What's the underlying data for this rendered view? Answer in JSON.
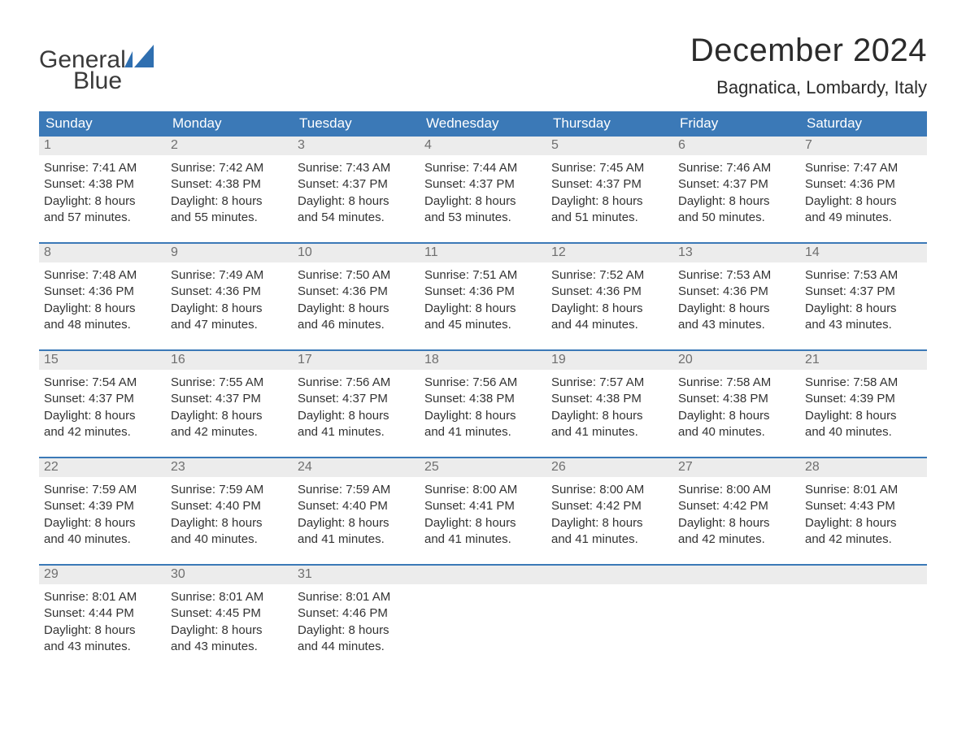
{
  "brand": {
    "word1": "General",
    "word2": "Blue",
    "logo_color": "#2f6fb0",
    "text_color": "#3a3a3a"
  },
  "header": {
    "month_title": "December 2024",
    "location": "Bagnatica, Lombardy, Italy"
  },
  "colors": {
    "header_bg": "#3b79b7",
    "header_text": "#ffffff",
    "week_border": "#3b79b7",
    "daynum_bg": "#ececec",
    "daynum_text": "#6f6f6f",
    "body_text": "#333333",
    "page_bg": "#ffffff"
  },
  "typography": {
    "month_title_fontsize": 40,
    "location_fontsize": 22,
    "dayhead_fontsize": 17,
    "daynum_fontsize": 16,
    "cell_fontsize": 15,
    "font_family": "Arial"
  },
  "day_headers": [
    "Sunday",
    "Monday",
    "Tuesday",
    "Wednesday",
    "Thursday",
    "Friday",
    "Saturday"
  ],
  "weeks": [
    [
      {
        "n": "1",
        "sunrise": "Sunrise: 7:41 AM",
        "sunset": "Sunset: 4:38 PM",
        "daylight1": "Daylight: 8 hours",
        "daylight2": "and 57 minutes."
      },
      {
        "n": "2",
        "sunrise": "Sunrise: 7:42 AM",
        "sunset": "Sunset: 4:38 PM",
        "daylight1": "Daylight: 8 hours",
        "daylight2": "and 55 minutes."
      },
      {
        "n": "3",
        "sunrise": "Sunrise: 7:43 AM",
        "sunset": "Sunset: 4:37 PM",
        "daylight1": "Daylight: 8 hours",
        "daylight2": "and 54 minutes."
      },
      {
        "n": "4",
        "sunrise": "Sunrise: 7:44 AM",
        "sunset": "Sunset: 4:37 PM",
        "daylight1": "Daylight: 8 hours",
        "daylight2": "and 53 minutes."
      },
      {
        "n": "5",
        "sunrise": "Sunrise: 7:45 AM",
        "sunset": "Sunset: 4:37 PM",
        "daylight1": "Daylight: 8 hours",
        "daylight2": "and 51 minutes."
      },
      {
        "n": "6",
        "sunrise": "Sunrise: 7:46 AM",
        "sunset": "Sunset: 4:37 PM",
        "daylight1": "Daylight: 8 hours",
        "daylight2": "and 50 minutes."
      },
      {
        "n": "7",
        "sunrise": "Sunrise: 7:47 AM",
        "sunset": "Sunset: 4:36 PM",
        "daylight1": "Daylight: 8 hours",
        "daylight2": "and 49 minutes."
      }
    ],
    [
      {
        "n": "8",
        "sunrise": "Sunrise: 7:48 AM",
        "sunset": "Sunset: 4:36 PM",
        "daylight1": "Daylight: 8 hours",
        "daylight2": "and 48 minutes."
      },
      {
        "n": "9",
        "sunrise": "Sunrise: 7:49 AM",
        "sunset": "Sunset: 4:36 PM",
        "daylight1": "Daylight: 8 hours",
        "daylight2": "and 47 minutes."
      },
      {
        "n": "10",
        "sunrise": "Sunrise: 7:50 AM",
        "sunset": "Sunset: 4:36 PM",
        "daylight1": "Daylight: 8 hours",
        "daylight2": "and 46 minutes."
      },
      {
        "n": "11",
        "sunrise": "Sunrise: 7:51 AM",
        "sunset": "Sunset: 4:36 PM",
        "daylight1": "Daylight: 8 hours",
        "daylight2": "and 45 minutes."
      },
      {
        "n": "12",
        "sunrise": "Sunrise: 7:52 AM",
        "sunset": "Sunset: 4:36 PM",
        "daylight1": "Daylight: 8 hours",
        "daylight2": "and 44 minutes."
      },
      {
        "n": "13",
        "sunrise": "Sunrise: 7:53 AM",
        "sunset": "Sunset: 4:36 PM",
        "daylight1": "Daylight: 8 hours",
        "daylight2": "and 43 minutes."
      },
      {
        "n": "14",
        "sunrise": "Sunrise: 7:53 AM",
        "sunset": "Sunset: 4:37 PM",
        "daylight1": "Daylight: 8 hours",
        "daylight2": "and 43 minutes."
      }
    ],
    [
      {
        "n": "15",
        "sunrise": "Sunrise: 7:54 AM",
        "sunset": "Sunset: 4:37 PM",
        "daylight1": "Daylight: 8 hours",
        "daylight2": "and 42 minutes."
      },
      {
        "n": "16",
        "sunrise": "Sunrise: 7:55 AM",
        "sunset": "Sunset: 4:37 PM",
        "daylight1": "Daylight: 8 hours",
        "daylight2": "and 42 minutes."
      },
      {
        "n": "17",
        "sunrise": "Sunrise: 7:56 AM",
        "sunset": "Sunset: 4:37 PM",
        "daylight1": "Daylight: 8 hours",
        "daylight2": "and 41 minutes."
      },
      {
        "n": "18",
        "sunrise": "Sunrise: 7:56 AM",
        "sunset": "Sunset: 4:38 PM",
        "daylight1": "Daylight: 8 hours",
        "daylight2": "and 41 minutes."
      },
      {
        "n": "19",
        "sunrise": "Sunrise: 7:57 AM",
        "sunset": "Sunset: 4:38 PM",
        "daylight1": "Daylight: 8 hours",
        "daylight2": "and 41 minutes."
      },
      {
        "n": "20",
        "sunrise": "Sunrise: 7:58 AM",
        "sunset": "Sunset: 4:38 PM",
        "daylight1": "Daylight: 8 hours",
        "daylight2": "and 40 minutes."
      },
      {
        "n": "21",
        "sunrise": "Sunrise: 7:58 AM",
        "sunset": "Sunset: 4:39 PM",
        "daylight1": "Daylight: 8 hours",
        "daylight2": "and 40 minutes."
      }
    ],
    [
      {
        "n": "22",
        "sunrise": "Sunrise: 7:59 AM",
        "sunset": "Sunset: 4:39 PM",
        "daylight1": "Daylight: 8 hours",
        "daylight2": "and 40 minutes."
      },
      {
        "n": "23",
        "sunrise": "Sunrise: 7:59 AM",
        "sunset": "Sunset: 4:40 PM",
        "daylight1": "Daylight: 8 hours",
        "daylight2": "and 40 minutes."
      },
      {
        "n": "24",
        "sunrise": "Sunrise: 7:59 AM",
        "sunset": "Sunset: 4:40 PM",
        "daylight1": "Daylight: 8 hours",
        "daylight2": "and 41 minutes."
      },
      {
        "n": "25",
        "sunrise": "Sunrise: 8:00 AM",
        "sunset": "Sunset: 4:41 PM",
        "daylight1": "Daylight: 8 hours",
        "daylight2": "and 41 minutes."
      },
      {
        "n": "26",
        "sunrise": "Sunrise: 8:00 AM",
        "sunset": "Sunset: 4:42 PM",
        "daylight1": "Daylight: 8 hours",
        "daylight2": "and 41 minutes."
      },
      {
        "n": "27",
        "sunrise": "Sunrise: 8:00 AM",
        "sunset": "Sunset: 4:42 PM",
        "daylight1": "Daylight: 8 hours",
        "daylight2": "and 42 minutes."
      },
      {
        "n": "28",
        "sunrise": "Sunrise: 8:01 AM",
        "sunset": "Sunset: 4:43 PM",
        "daylight1": "Daylight: 8 hours",
        "daylight2": "and 42 minutes."
      }
    ],
    [
      {
        "n": "29",
        "sunrise": "Sunrise: 8:01 AM",
        "sunset": "Sunset: 4:44 PM",
        "daylight1": "Daylight: 8 hours",
        "daylight2": "and 43 minutes."
      },
      {
        "n": "30",
        "sunrise": "Sunrise: 8:01 AM",
        "sunset": "Sunset: 4:45 PM",
        "daylight1": "Daylight: 8 hours",
        "daylight2": "and 43 minutes."
      },
      {
        "n": "31",
        "sunrise": "Sunrise: 8:01 AM",
        "sunset": "Sunset: 4:46 PM",
        "daylight1": "Daylight: 8 hours",
        "daylight2": "and 44 minutes."
      },
      {
        "empty": true
      },
      {
        "empty": true
      },
      {
        "empty": true
      },
      {
        "empty": true
      }
    ]
  ]
}
